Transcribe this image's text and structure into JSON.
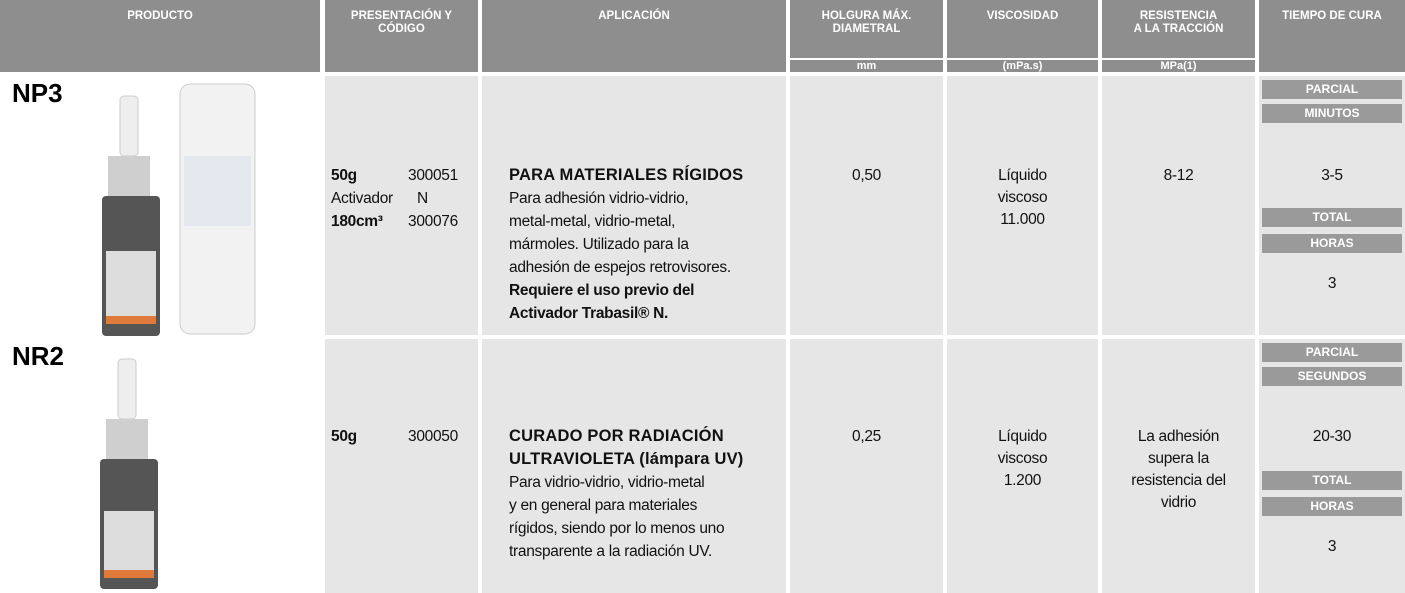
{
  "header": {
    "columns": [
      [
        "PRODUCTO"
      ],
      [
        "PRESENTACIÓN Y",
        "CÓDIGO"
      ],
      [
        "APLICACIÓN"
      ],
      [
        "HOLGURA MÁX.",
        "DIAMETRAL"
      ],
      [
        "VISCOSIDAD"
      ],
      [
        "RESISTENCIA",
        "A LA TRACCIÓN"
      ],
      [
        "TIEMPO DE CURA"
      ]
    ],
    "units": [
      "mm",
      "(mPa.s)",
      "MPa(1)"
    ]
  },
  "products": [
    {
      "name": "NP3",
      "presentation": [
        [
          "50g",
          "300051"
        ],
        [
          "Activador",
          "N"
        ],
        [
          "180cm³",
          "300076"
        ]
      ],
      "application": {
        "title": [
          "PARA MATERIALES RÍGIDOS"
        ],
        "body": [
          "Para adhesión vidrio-vidrio,",
          "metal-metal, vidrio-metal,",
          "mármoles. Utilizado para la",
          "adhesión de espejos retrovisores."
        ],
        "note": [
          "Requiere el uso previo del",
          "Activador Trabasil® N."
        ]
      },
      "clearance": "0,50",
      "viscosity": [
        "Líquido",
        "viscoso",
        "11.000"
      ],
      "strength": [
        "8-12"
      ],
      "cure": {
        "partial": "PARCIAL",
        "partial_unit": "MINUTOS",
        "partial_value": "3-5",
        "total": "TOTAL",
        "total_unit": "HORAS",
        "total_value": "3"
      }
    },
    {
      "name": "NR2",
      "presentation": [
        [
          "50g",
          "300050"
        ]
      ],
      "application": {
        "title": [
          "CURADO POR RADIACIÓN",
          "ULTRAVIOLETA (lámpara UV)"
        ],
        "body": [
          "Para vidrio-vidrio, vidrio-metal",
          "y en general para materiales",
          "rígidos,  siendo por lo menos uno",
          "transparente a la radiación UV."
        ],
        "note": []
      },
      "clearance": "0,25",
      "viscosity": [
        "Líquido",
        "viscoso",
        "1.200"
      ],
      "strength": [
        "La adhesión",
        "supera la",
        "resistencia del",
        "vidrio"
      ],
      "cure": {
        "partial": "PARCIAL",
        "partial_unit": "SEGUNDOS",
        "partial_value": "20-30",
        "total": "TOTAL",
        "total_unit": "HORAS",
        "total_value": "3"
      }
    }
  ]
}
